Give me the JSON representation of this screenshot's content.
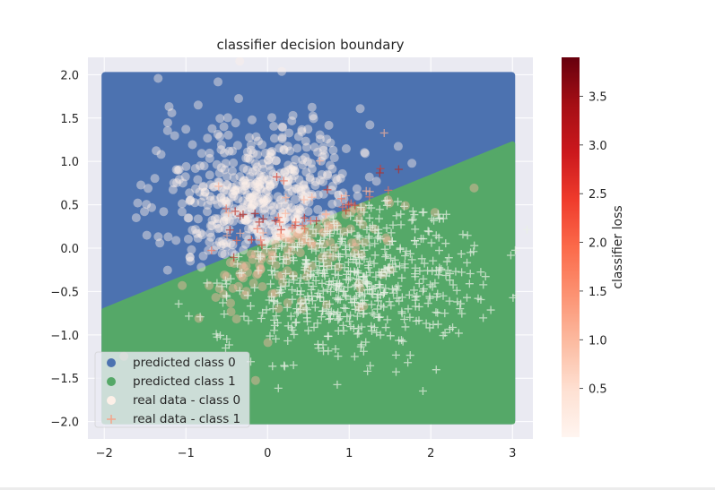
{
  "chart_data": {
    "type": "scatter",
    "title": "classifier decision boundary",
    "xlabel": "",
    "ylabel": "",
    "xlim": [
      -2.2,
      3.25
    ],
    "ylim": [
      -2.2,
      2.2
    ],
    "xticks": [
      -2,
      -1,
      0,
      1,
      2,
      3
    ],
    "yticks": [
      -2.0,
      -1.5,
      -1.0,
      -0.5,
      0.0,
      0.5,
      1.0,
      1.5,
      2.0
    ],
    "x_tick_labels": [
      "−2",
      "−1",
      "0",
      "1",
      "2",
      "3"
    ],
    "y_tick_labels": [
      "−2.0",
      "−1.5",
      "−1.0",
      "−0.5",
      "0.0",
      "0.5",
      "1.0",
      "1.5",
      "2.0"
    ],
    "grid": true,
    "decision_boundary": {
      "description_points": [
        [
          -2,
          -0.72
        ],
        [
          3,
          1.2
        ]
      ],
      "region_above": "predicted class 0",
      "region_below": "predicted class 1",
      "grid_range": {
        "x": [
          -2,
          3
        ],
        "y": [
          -2,
          2
        ]
      }
    },
    "series": [
      {
        "name": "predicted class 0",
        "color": "#4c72b0",
        "marker": "circle"
      },
      {
        "name": "predicted class 1",
        "color": "#55a868",
        "marker": "circle"
      },
      {
        "name": "real data - class 0",
        "color": "#fdf0e8",
        "marker": "circle",
        "cluster_center": [
          0.0,
          0.5
        ],
        "cluster_std": [
          0.65,
          0.5
        ]
      },
      {
        "name": "real data - class 1",
        "color": "#f4a58a",
        "marker": "plus",
        "cluster_center": [
          1.0,
          -0.3
        ],
        "cluster_std": [
          0.75,
          0.45
        ]
      }
    ],
    "legend_position": "lower-left",
    "colorbar": {
      "label": "classifier loss",
      "range": [
        0,
        3.9
      ],
      "ticks": [
        0.5,
        1.0,
        1.5,
        2.0,
        2.5,
        3.0,
        3.5
      ],
      "tick_labels": [
        "0.5",
        "1.0",
        "1.5",
        "2.0",
        "2.5",
        "3.0",
        "3.5"
      ],
      "colormap": "Reds"
    }
  },
  "colors": {
    "axes_bg": "#eaeaf2",
    "grid": "#ffffff",
    "class0_region": "#4c72b0",
    "class1_region": "#55a868"
  }
}
